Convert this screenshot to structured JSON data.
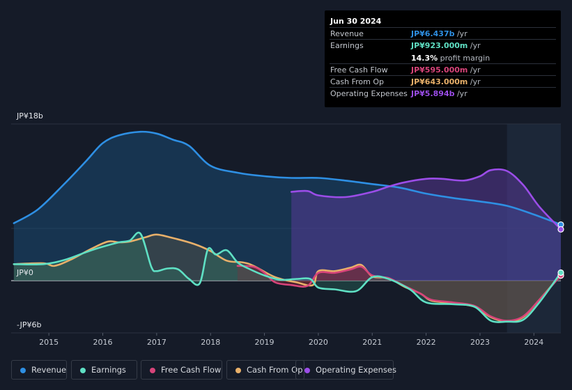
{
  "chart_data": {
    "type": "area",
    "title": "",
    "y_axis": {
      "min": -6,
      "max": 18,
      "unit": "JP¥b",
      "labels": [
        "JP¥18b",
        "JP¥0",
        "-JP¥6b"
      ],
      "label_values": [
        18,
        0,
        -6
      ]
    },
    "x_axis": {
      "ticks": [
        "2015",
        "2016",
        "2017",
        "2018",
        "2019",
        "2020",
        "2021",
        "2022",
        "2023",
        "2024"
      ],
      "tick_values": [
        2015,
        2016,
        2017,
        2018,
        2019,
        2020,
        2021,
        2022,
        2023,
        2024
      ],
      "min": 2014.3,
      "max": 2024.5
    },
    "highlight_start": 2023.5,
    "series": [
      {
        "name": "Revenue",
        "color": "#2e8fe3",
        "fill": "#1a4d78",
        "fill_opacity": 0.5,
        "points": [
          [
            2014.35,
            6.6
          ],
          [
            2014.8,
            8.2
          ],
          [
            2015.3,
            11.2
          ],
          [
            2015.7,
            13.8
          ],
          [
            2016.0,
            15.8
          ],
          [
            2016.3,
            16.7
          ],
          [
            2016.7,
            17.1
          ],
          [
            2017.0,
            16.9
          ],
          [
            2017.3,
            16.2
          ],
          [
            2017.6,
            15.5
          ],
          [
            2018.0,
            13.2
          ],
          [
            2018.5,
            12.4
          ],
          [
            2019.0,
            12.0
          ],
          [
            2019.5,
            11.8
          ],
          [
            2020.0,
            11.8
          ],
          [
            2020.5,
            11.5
          ],
          [
            2021.0,
            11.1
          ],
          [
            2021.5,
            10.7
          ],
          [
            2022.0,
            10.0
          ],
          [
            2022.5,
            9.5
          ],
          [
            2023.0,
            9.1
          ],
          [
            2023.5,
            8.6
          ],
          [
            2024.0,
            7.6
          ],
          [
            2024.5,
            6.437
          ]
        ]
      },
      {
        "name": "Operating Expenses",
        "color": "#9b4de8",
        "fill": "#5b3a9c",
        "fill_opacity": 0.5,
        "points": [
          [
            2019.5,
            10.2
          ],
          [
            2019.8,
            10.3
          ],
          [
            2020.0,
            9.8
          ],
          [
            2020.5,
            9.6
          ],
          [
            2021.0,
            10.2
          ],
          [
            2021.3,
            10.8
          ],
          [
            2021.6,
            11.3
          ],
          [
            2022.0,
            11.7
          ],
          [
            2022.3,
            11.7
          ],
          [
            2022.7,
            11.5
          ],
          [
            2023.0,
            12.0
          ],
          [
            2023.2,
            12.7
          ],
          [
            2023.5,
            12.6
          ],
          [
            2023.8,
            11.0
          ],
          [
            2024.1,
            8.5
          ],
          [
            2024.5,
            5.894
          ]
        ]
      },
      {
        "name": "Cash From Op",
        "color": "#e8b06a",
        "fill": "#8a6a3a",
        "fill_opacity": 0.25,
        "points": [
          [
            2014.35,
            1.9
          ],
          [
            2014.9,
            2.0
          ],
          [
            2015.1,
            1.7
          ],
          [
            2015.4,
            2.4
          ],
          [
            2015.8,
            3.7
          ],
          [
            2016.1,
            4.5
          ],
          [
            2016.3,
            4.4
          ],
          [
            2016.5,
            4.5
          ],
          [
            2016.8,
            5.0
          ],
          [
            2017.0,
            5.3
          ],
          [
            2017.3,
            4.9
          ],
          [
            2017.7,
            4.2
          ],
          [
            2018.0,
            3.4
          ],
          [
            2018.3,
            2.3
          ],
          [
            2018.6,
            2.1
          ],
          [
            2018.8,
            1.7
          ],
          [
            2019.2,
            0.4
          ],
          [
            2019.6,
            -0.2
          ],
          [
            2019.9,
            -0.5
          ],
          [
            2020.0,
            1.1
          ],
          [
            2020.3,
            1.1
          ],
          [
            2020.6,
            1.5
          ],
          [
            2020.8,
            1.8
          ],
          [
            2021.0,
            0.5
          ],
          [
            2021.3,
            0.3
          ],
          [
            2021.6,
            -0.7
          ],
          [
            2021.9,
            -1.5
          ],
          [
            2022.1,
            -2.3
          ],
          [
            2022.5,
            -2.6
          ],
          [
            2022.9,
            -3.0
          ],
          [
            2023.2,
            -4.2
          ],
          [
            2023.5,
            -4.7
          ],
          [
            2023.8,
            -4.2
          ],
          [
            2024.1,
            -2.2
          ],
          [
            2024.5,
            0.643
          ]
        ]
      },
      {
        "name": "Free Cash Flow",
        "color": "#d8447a",
        "fill": "#7a2035",
        "fill_opacity": 0.55,
        "points": [
          [
            2018.5,
            1.7
          ],
          [
            2018.8,
            1.6
          ],
          [
            2019.0,
            0.9
          ],
          [
            2019.2,
            -0.2
          ],
          [
            2019.5,
            -0.5
          ],
          [
            2019.8,
            -0.6
          ],
          [
            2020.0,
            0.9
          ],
          [
            2020.3,
            0.9
          ],
          [
            2020.6,
            1.3
          ],
          [
            2020.8,
            1.6
          ],
          [
            2021.0,
            0.6
          ],
          [
            2021.3,
            0.3
          ],
          [
            2021.6,
            -0.6
          ],
          [
            2021.9,
            -1.5
          ],
          [
            2022.1,
            -2.2
          ],
          [
            2022.5,
            -2.5
          ],
          [
            2022.9,
            -2.9
          ],
          [
            2023.2,
            -4.1
          ],
          [
            2023.5,
            -4.6
          ],
          [
            2023.8,
            -4.1
          ],
          [
            2024.1,
            -2.2
          ],
          [
            2024.5,
            0.595
          ]
        ]
      },
      {
        "name": "Earnings",
        "color": "#5fe0c4",
        "fill": "#2f7a68",
        "fill_opacity": 0.35,
        "points": [
          [
            2014.35,
            1.9
          ],
          [
            2014.9,
            1.9
          ],
          [
            2015.3,
            2.4
          ],
          [
            2015.7,
            3.3
          ],
          [
            2016.0,
            3.9
          ],
          [
            2016.3,
            4.4
          ],
          [
            2016.5,
            4.6
          ],
          [
            2016.7,
            5.4
          ],
          [
            2016.9,
            1.6
          ],
          [
            2017.0,
            1.1
          ],
          [
            2017.2,
            1.4
          ],
          [
            2017.4,
            1.3
          ],
          [
            2017.6,
            0.2
          ],
          [
            2017.8,
            -0.3
          ],
          [
            2017.95,
            3.6
          ],
          [
            2018.1,
            3.0
          ],
          [
            2018.3,
            3.5
          ],
          [
            2018.5,
            2.1
          ],
          [
            2018.7,
            1.4
          ],
          [
            2019.0,
            0.6
          ],
          [
            2019.3,
            0.1
          ],
          [
            2019.6,
            0.2
          ],
          [
            2019.85,
            0.2
          ],
          [
            2020.0,
            -0.8
          ],
          [
            2020.3,
            -1.0
          ],
          [
            2020.7,
            -1.2
          ],
          [
            2021.0,
            0.4
          ],
          [
            2021.3,
            0.2
          ],
          [
            2021.7,
            -1.0
          ],
          [
            2022.0,
            -2.5
          ],
          [
            2022.5,
            -2.7
          ],
          [
            2022.9,
            -3.0
          ],
          [
            2023.2,
            -4.6
          ],
          [
            2023.5,
            -4.7
          ],
          [
            2023.8,
            -4.5
          ],
          [
            2024.1,
            -2.5
          ],
          [
            2024.5,
            0.923
          ]
        ]
      }
    ],
    "legend": [
      "Revenue",
      "Earnings",
      "Free Cash Flow",
      "Cash From Op",
      "Operating Expenses"
    ]
  },
  "tooltip": {
    "date": "Jun 30 2024",
    "rows": [
      {
        "label": "Revenue",
        "value": "JP¥6.437b",
        "unit": " /yr",
        "color": "#2e8fe3"
      },
      {
        "label": "Earnings",
        "value": "JP¥923.000m",
        "unit": " /yr",
        "color": "#5fe0c4"
      },
      {
        "label": "Free Cash Flow",
        "value": "JP¥595.000m",
        "unit": " /yr",
        "color": "#d8447a"
      },
      {
        "label": "Cash From Op",
        "value": "JP¥643.000m",
        "unit": " /yr",
        "color": "#e8b06a"
      },
      {
        "label": "Operating Expenses",
        "value": "JP¥5.894b",
        "unit": " /yr",
        "color": "#9b4de8"
      }
    ],
    "profit_margin_value": "14.3%",
    "profit_margin_label": " profit margin"
  },
  "legend_items": [
    {
      "label": "Revenue",
      "color": "#2e8fe3"
    },
    {
      "label": "Earnings",
      "color": "#5fe0c4"
    },
    {
      "label": "Free Cash Flow",
      "color": "#d8447a"
    },
    {
      "label": "Cash From Op",
      "color": "#e8b06a"
    },
    {
      "label": "Operating Expenses",
      "color": "#9b4de8"
    }
  ]
}
